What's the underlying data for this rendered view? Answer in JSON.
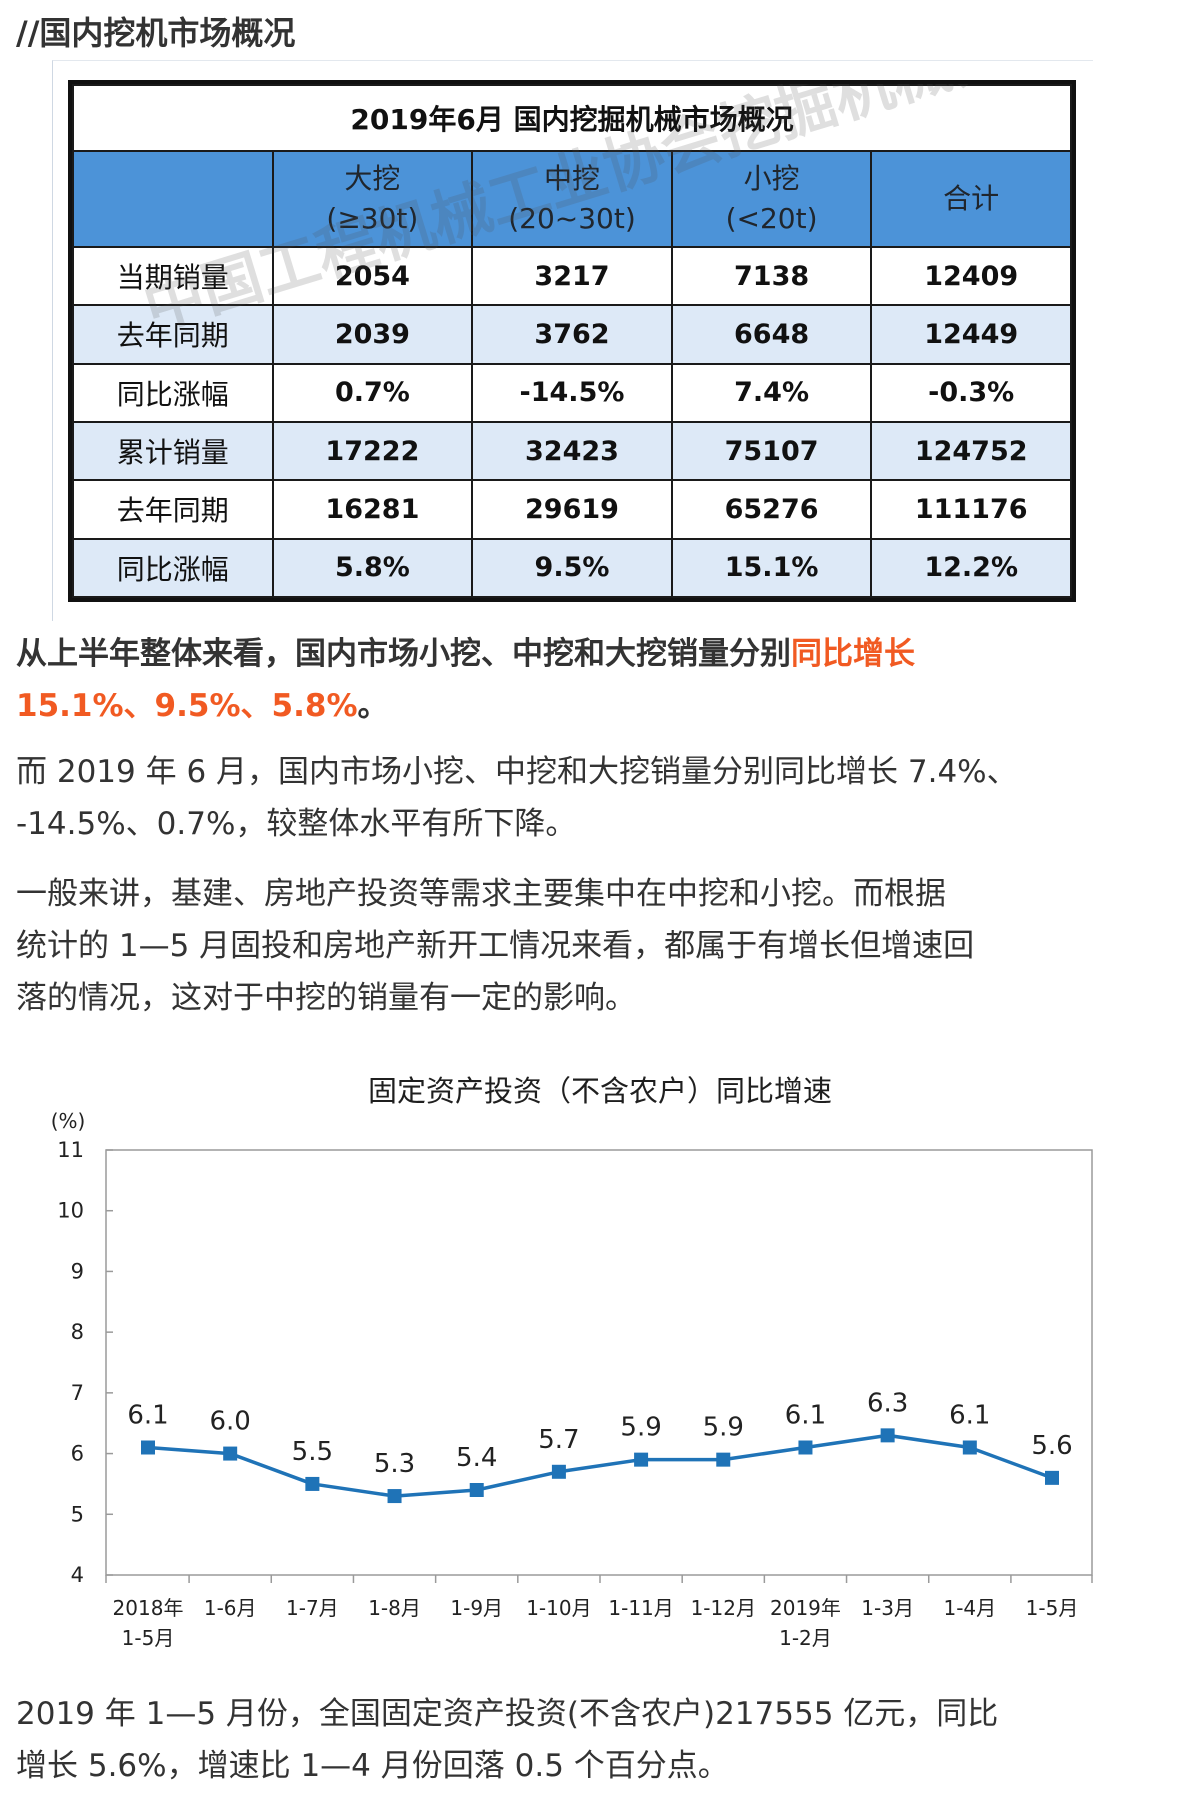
{
  "section_title": "//国内挖机市场概况",
  "table": {
    "title": "2019年6月  国内挖掘机械市场概况",
    "headers": [
      {
        "line1": "",
        "line2": ""
      },
      {
        "line1": "大挖",
        "line2": "(≥30t)"
      },
      {
        "line1": "中挖",
        "line2": "(20~30t)"
      },
      {
        "line1": "小挖",
        "line2": "(<20t)"
      },
      {
        "line1": "合计",
        "line2": ""
      }
    ],
    "rows": [
      {
        "label": "当期销量",
        "values": [
          "2054",
          "3217",
          "7138",
          "12409"
        ]
      },
      {
        "label": "去年同期",
        "values": [
          "2039",
          "3762",
          "6648",
          "12449"
        ]
      },
      {
        "label": "同比涨幅",
        "values": [
          "0.7%",
          "-14.5%",
          "7.4%",
          "-0.3%"
        ]
      },
      {
        "label": "累计销量",
        "values": [
          "17222",
          "32423",
          "75107",
          "124752"
        ]
      },
      {
        "label": "去年同期",
        "values": [
          "16281",
          "29619",
          "65276",
          "111176"
        ]
      },
      {
        "label": "同比涨幅",
        "values": [
          "5.8%",
          "9.5%",
          "15.1%",
          "12.2%"
        ]
      }
    ],
    "watermark": "中国工程机械工业协会挖掘机械分会"
  },
  "paragraphs": {
    "p1_prefix": "从上半年整体来看，国内市场小挖、中挖和大挖销量分别",
    "p1_highlight_a": "同比增长",
    "p1_highlight_b": "15.1%、9.5%、5.8%",
    "p1_suffix": "。",
    "p2_line1": "而 2019 年 6 月，国内市场小挖、中挖和大挖销量分别同比增长 7.4%、",
    "p2_line2": "-14.5%、0.7%，较整体水平有所下降。",
    "p3_line1": "一般来讲，基建、房地产投资等需求主要集中在中挖和小挖。而根据",
    "p3_line2": "统计的 1—5 月固投和房地产新开工情况来看，都属于有增长但增速回",
    "p3_line3": "落的情况，这对于中挖的销量有一定的影响。",
    "p4_line1": "2019 年 1—5 月份，全国固定资产投资(不含农户)217555 亿元，同比",
    "p4_line2": "增长 5.6%，增速比 1—4 月份回落 0.5 个百分点。"
  },
  "colors": {
    "line": "#1f73b7",
    "table_header": "#4c93d8",
    "table_band": "#dde9f7",
    "highlight": "#f15a22"
  },
  "chart_data": {
    "type": "line",
    "title": "固定资产投资（不含农户）同比增速",
    "ylabel": "(%)",
    "ylim": [
      4,
      11
    ],
    "yticks": [
      4,
      5,
      6,
      7,
      8,
      9,
      10,
      11
    ],
    "grid": false,
    "categories": [
      [
        "2018年",
        "1-5月"
      ],
      [
        "1-6月"
      ],
      [
        "1-7月"
      ],
      [
        "1-8月"
      ],
      [
        "1-9月"
      ],
      [
        "1-10月"
      ],
      [
        "1-11月"
      ],
      [
        "1-12月"
      ],
      [
        "2019年",
        "1-2月"
      ],
      [
        "1-3月"
      ],
      [
        "1-4月"
      ],
      [
        "1-5月"
      ]
    ],
    "values": [
      6.1,
      6.0,
      5.5,
      5.3,
      5.4,
      5.7,
      5.9,
      5.9,
      6.1,
      6.3,
      6.1,
      5.6
    ],
    "labels": [
      "6.1",
      "6.0",
      "5.5",
      "5.3",
      "5.4",
      "5.7",
      "5.9",
      "5.9",
      "6.1",
      "6.3",
      "6.1",
      "5.6"
    ]
  }
}
